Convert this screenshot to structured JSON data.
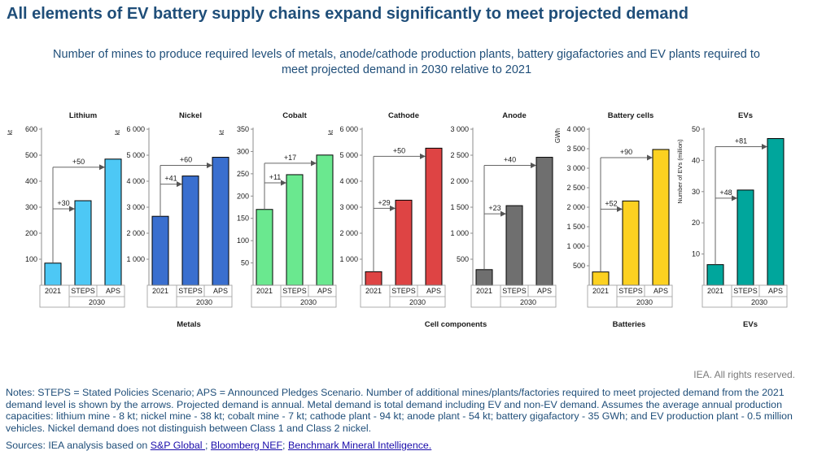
{
  "title": "All elements of EV battery supply chains expand significantly to meet projected demand",
  "subtitle_line1": "Number of mines to produce required levels of metals, anode/cathode production plants, battery gigafactories and EV plants required to",
  "subtitle_line2": "meet projected demand in 2030 relative to 2021",
  "colors": {
    "title": "#1f4e79",
    "Lithium": "#4dc8f5",
    "Nickel": "#3a6fcf",
    "Cobalt": "#6ae88f",
    "Cathode": "#de4444",
    "Anode": "#6f6f6f",
    "Battery cells": "#fcd121",
    "EVs": "#00a69c"
  },
  "chart_data": [
    {
      "type": "bar",
      "title": "Lithium",
      "ylabel": "kt",
      "categories": [
        "2021",
        "STEPS",
        "APS"
      ],
      "group_label": "2030",
      "values": [
        85,
        325,
        485
      ],
      "ylim": [
        0,
        600
      ],
      "yticks": [
        "100",
        "200",
        "300",
        "400",
        "500",
        "600"
      ],
      "arrows": [
        "+30",
        "+50"
      ]
    },
    {
      "type": "bar",
      "title": "Nickel",
      "ylabel": "kt",
      "categories": [
        "2021",
        "STEPS",
        "APS"
      ],
      "group_label": "2030",
      "values": [
        2650,
        4200,
        4920
      ],
      "ylim": [
        0,
        6000
      ],
      "yticks": [
        "1 000",
        "2 000",
        "3 000",
        "4 000",
        "5 000",
        "6 000"
      ],
      "arrows": [
        "+41",
        "+60"
      ]
    },
    {
      "type": "bar",
      "title": "Cobalt",
      "ylabel": "kt",
      "categories": [
        "2021",
        "STEPS",
        "APS"
      ],
      "group_label": "2030",
      "values": [
        170,
        248,
        292
      ],
      "ylim": [
        0,
        350
      ],
      "yticks": [
        "50",
        "100",
        "150",
        "200",
        "250",
        "300",
        "350"
      ],
      "arrows": [
        "+11",
        "+17"
      ]
    },
    {
      "type": "bar",
      "title": "Cathode",
      "ylabel": "kt",
      "categories": [
        "2021",
        "STEPS",
        "APS"
      ],
      "group_label": "2030",
      "values": [
        520,
        3270,
        5270
      ],
      "ylim": [
        0,
        6000
      ],
      "yticks": [
        "1 000",
        "2 000",
        "3 000",
        "4 000",
        "5 000",
        "6 000"
      ],
      "arrows": [
        "+29",
        "+50"
      ]
    },
    {
      "type": "bar",
      "title": "Anode",
      "ylabel": "",
      "categories": [
        "2021",
        "STEPS",
        "APS"
      ],
      "group_label": "2030",
      "values": [
        300,
        1530,
        2460
      ],
      "ylim": [
        0,
        3000
      ],
      "yticks": [
        "500",
        "1 000",
        "1 500",
        "2 000",
        "2 500",
        "3 000"
      ],
      "arrows": [
        "+23",
        "+40"
      ]
    },
    {
      "type": "bar",
      "title": "Battery cells",
      "ylabel": "GWh",
      "categories": [
        "2021",
        "STEPS",
        "APS"
      ],
      "group_label": "2030",
      "values": [
        340,
        2160,
        3480
      ],
      "ylim": [
        0,
        4000
      ],
      "yticks": [
        "500",
        "1 000",
        "1 500",
        "2 000",
        "2 500",
        "3 000",
        "3 500",
        "4 000"
      ],
      "arrows": [
        "+52",
        "+90"
      ]
    },
    {
      "type": "bar",
      "title": "EVs",
      "ylabel": "Number of EVs (million)",
      "categories": [
        "2021",
        "STEPS",
        "APS"
      ],
      "group_label": "2030",
      "values": [
        6.6,
        30.5,
        47
      ],
      "ylim": [
        0,
        50
      ],
      "yticks": [
        "10",
        "20",
        "30",
        "40",
        "50"
      ],
      "arrows": [
        "+48",
        "+81"
      ]
    }
  ],
  "group_labels": [
    "Metals",
    "Cell components",
    "Batteries",
    "EVs"
  ],
  "copyright": "IEA. All rights reserved.",
  "notes": "Notes: STEPS = Stated Policies Scenario; APS = Announced Pledges Scenario. Number of additional mines/plants/factories required to meet projected demand from the 2021 demand level is shown by the arrows. Projected demand is annual. Metal demand is total demand including EV and non-EV demand. Assumes the average annual production capacities: lithium mine - 8 kt; nickel mine - 38 kt; cobalt mine - 7 kt; cathode plant - 94 kt; anode plant - 54 kt; battery gigafactory - 35 GWh; and EV production plant - 0.5 million vehicles. Nickel demand does not distinguish between Class 1 and Class 2 nickel.",
  "sources": {
    "prefix": "Sources: IEA analysis based on ",
    "link1": "S&P Global ",
    "sep1": "; ",
    "link2": "Bloomberg NEF",
    "sep2": "; ",
    "link3": "Benchmark Mineral Intelligence."
  }
}
